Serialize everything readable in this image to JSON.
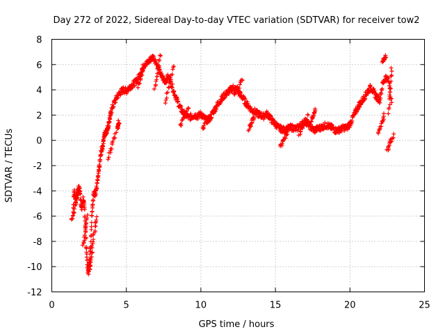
{
  "chart_data": {
    "type": "scatter",
    "title": "Day 272 of 2022, Sidereal Day-to-day VTEC variation (SDTVAR) for receiver tow2",
    "xlabel": "GPS time / hours",
    "ylabel": "SDTVAR / TECUs",
    "xlim": [
      0,
      25
    ],
    "ylim": [
      -12,
      8
    ],
    "grid": true,
    "marker": "plus",
    "color": "#ff0000",
    "x_ticks": [
      0,
      5,
      10,
      15,
      20,
      25
    ],
    "x_tick_labels": [
      "0",
      "5",
      "10",
      "15",
      "20",
      "25"
    ],
    "y_ticks": [
      -12,
      -10,
      -8,
      -6,
      -4,
      -2,
      0,
      2,
      4,
      6,
      8
    ],
    "y_tick_labels": [
      "-12",
      "-10",
      "-8",
      "-6",
      "-4",
      "-2",
      "0",
      "2",
      "4",
      "6",
      "8"
    ],
    "series": [
      {
        "name": "SDTVAR",
        "trend": [
          [
            1.4,
            -6.2
          ],
          [
            1.5,
            -4.0
          ],
          [
            1.6,
            -4.7
          ],
          [
            1.7,
            -4.3
          ],
          [
            1.8,
            -3.7
          ],
          [
            1.9,
            -4.2
          ],
          [
            2.0,
            -5.5
          ],
          [
            2.1,
            -4.6
          ],
          [
            2.2,
            -5.5
          ],
          [
            2.3,
            -8.2
          ],
          [
            2.4,
            -10.3
          ],
          [
            2.5,
            -9.8
          ],
          [
            2.6,
            -8.5
          ],
          [
            2.7,
            -5.5
          ],
          [
            2.8,
            -4.3
          ],
          [
            2.9,
            -4.2
          ],
          [
            3.0,
            -3.8
          ],
          [
            3.1,
            -3.0
          ],
          [
            3.2,
            -2.0
          ],
          [
            3.3,
            -1.0
          ],
          [
            3.4,
            -0.5
          ],
          [
            3.5,
            0.3
          ],
          [
            3.6,
            0.6
          ],
          [
            3.7,
            0.8
          ],
          [
            3.8,
            1.2
          ],
          [
            3.9,
            1.8
          ],
          [
            4.0,
            2.4
          ],
          [
            4.2,
            3.0
          ],
          [
            4.4,
            3.5
          ],
          [
            4.6,
            3.8
          ],
          [
            4.8,
            4.0
          ],
          [
            5.0,
            3.9
          ],
          [
            5.2,
            4.2
          ],
          [
            5.4,
            4.4
          ],
          [
            5.6,
            4.6
          ],
          [
            5.8,
            4.9
          ],
          [
            6.0,
            5.5
          ],
          [
            6.2,
            6.0
          ],
          [
            6.4,
            6.1
          ],
          [
            6.6,
            6.4
          ],
          [
            6.8,
            6.6
          ],
          [
            7.0,
            6.2
          ],
          [
            7.2,
            5.5
          ],
          [
            7.4,
            5.0
          ],
          [
            7.6,
            4.7
          ],
          [
            7.8,
            5.0
          ],
          [
            8.0,
            4.6
          ],
          [
            8.2,
            3.8
          ],
          [
            8.4,
            3.2
          ],
          [
            8.6,
            2.6
          ],
          [
            8.8,
            2.2
          ],
          [
            9.0,
            2.0
          ],
          [
            9.2,
            1.8
          ],
          [
            9.4,
            1.9
          ],
          [
            9.6,
            2.0
          ],
          [
            9.8,
            1.9
          ],
          [
            10.0,
            2.1
          ],
          [
            10.2,
            1.8
          ],
          [
            10.4,
            1.6
          ],
          [
            10.6,
            1.7
          ],
          [
            10.8,
            2.2
          ],
          [
            11.0,
            2.6
          ],
          [
            11.2,
            3.0
          ],
          [
            11.4,
            3.3
          ],
          [
            11.6,
            3.6
          ],
          [
            11.8,
            3.8
          ],
          [
            12.0,
            4.0
          ],
          [
            12.2,
            4.2
          ],
          [
            12.4,
            4.0
          ],
          [
            12.6,
            3.7
          ],
          [
            12.8,
            3.4
          ],
          [
            13.0,
            3.0
          ],
          [
            13.2,
            2.7
          ],
          [
            13.4,
            2.4
          ],
          [
            13.6,
            2.3
          ],
          [
            13.8,
            2.1
          ],
          [
            14.0,
            2.0
          ],
          [
            14.2,
            1.9
          ],
          [
            14.4,
            2.1
          ],
          [
            14.6,
            1.9
          ],
          [
            14.8,
            1.5
          ],
          [
            15.0,
            1.3
          ],
          [
            15.2,
            1.0
          ],
          [
            15.4,
            0.9
          ],
          [
            15.6,
            0.8
          ],
          [
            15.8,
            0.9
          ],
          [
            16.0,
            1.0
          ],
          [
            16.2,
            1.0
          ],
          [
            16.4,
            0.9
          ],
          [
            16.6,
            1.1
          ],
          [
            16.8,
            1.3
          ],
          [
            17.0,
            1.5
          ],
          [
            17.2,
            1.3
          ],
          [
            17.4,
            1.0
          ],
          [
            17.6,
            0.8
          ],
          [
            17.8,
            0.9
          ],
          [
            18.0,
            1.0
          ],
          [
            18.2,
            1.1
          ],
          [
            18.4,
            1.2
          ],
          [
            18.6,
            1.1
          ],
          [
            18.8,
            1.0
          ],
          [
            19.0,
            0.8
          ],
          [
            19.2,
            0.8
          ],
          [
            19.4,
            0.9
          ],
          [
            19.6,
            1.0
          ],
          [
            19.8,
            1.0
          ],
          [
            20.0,
            1.3
          ],
          [
            20.2,
            1.8
          ],
          [
            20.4,
            2.3
          ],
          [
            20.6,
            2.8
          ],
          [
            20.8,
            3.1
          ],
          [
            21.0,
            3.5
          ],
          [
            21.2,
            3.9
          ],
          [
            21.4,
            4.2
          ],
          [
            21.6,
            3.8
          ],
          [
            21.8,
            3.4
          ],
          [
            22.0,
            3.2
          ],
          [
            22.2,
            4.5
          ],
          [
            22.4,
            5.0
          ],
          [
            22.6,
            4.7
          ],
          [
            22.8,
            3.0
          ]
        ],
        "scatter_segments": [
          [
            1.3,
            -6.3,
            1.9,
            -3.7
          ],
          [
            2.1,
            -8.3,
            2.4,
            -6.0
          ],
          [
            2.5,
            -10.5,
            2.7,
            -8.8
          ],
          [
            2.7,
            -8.5,
            3.0,
            -6.0
          ],
          [
            3.8,
            -1.4,
            4.3,
            0.6
          ],
          [
            4.4,
            1.0,
            4.5,
            1.5
          ],
          [
            5.8,
            4.3,
            6.2,
            6.0
          ],
          [
            6.9,
            4.0,
            7.3,
            6.8
          ],
          [
            7.6,
            3.0,
            8.2,
            6.0
          ],
          [
            8.6,
            1.2,
            9.2,
            2.6
          ],
          [
            10.1,
            1.0,
            10.6,
            1.8
          ],
          [
            12.2,
            3.6,
            12.8,
            4.8
          ],
          [
            13.2,
            0.9,
            13.6,
            1.9
          ],
          [
            15.3,
            -0.5,
            15.8,
            0.5
          ],
          [
            16.6,
            0.5,
            17.2,
            2.0
          ],
          [
            17.4,
            1.5,
            17.7,
            2.5
          ],
          [
            21.9,
            0.5,
            22.3,
            2.0
          ],
          [
            22.2,
            6.2,
            22.4,
            6.7
          ],
          [
            22.5,
            -0.8,
            22.9,
            0.4
          ],
          [
            22.6,
            2.2,
            22.8,
            5.8
          ]
        ]
      }
    ]
  }
}
